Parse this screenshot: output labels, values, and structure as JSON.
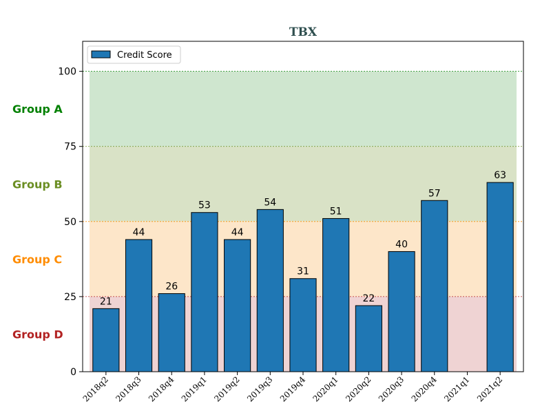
{
  "chart_data": {
    "type": "bar",
    "title": "TBX",
    "xlabel": "",
    "ylabel": "",
    "categories": [
      "2018q2",
      "2018q3",
      "2018q4",
      "2019q1",
      "2019q2",
      "2019q3",
      "2019q4",
      "2020q1",
      "2020q2",
      "2020q3",
      "2020q4",
      "2021q1",
      "2021q2"
    ],
    "series": [
      {
        "name": "Credit Score",
        "color": "#1f77b4",
        "values": [
          21,
          44,
          26,
          53,
          44,
          54,
          31,
          51,
          22,
          40,
          57,
          null,
          63
        ]
      }
    ],
    "ylim": [
      0,
      110
    ],
    "yticks": [
      0,
      25,
      50,
      75,
      100
    ],
    "legend_position": "top-left",
    "bands": [
      {
        "label": "Group A",
        "from": 75,
        "to": 100,
        "color": "#cfe6cf",
        "text_color": "#008000",
        "line_color": "#008000"
      },
      {
        "label": "Group B",
        "from": 50,
        "to": 75,
        "color": "#d9e2c6",
        "text_color": "#6b8e23",
        "line_color": "#6b8e23"
      },
      {
        "label": "Group C",
        "from": 25,
        "to": 50,
        "color": "#fde6c9",
        "text_color": "#ff8c00",
        "line_color": "#ff8c00"
      },
      {
        "label": "Group D",
        "from": 0,
        "to": 25,
        "color": "#efd3d3",
        "text_color": "#b22222",
        "line_color": "#b22222"
      }
    ]
  }
}
